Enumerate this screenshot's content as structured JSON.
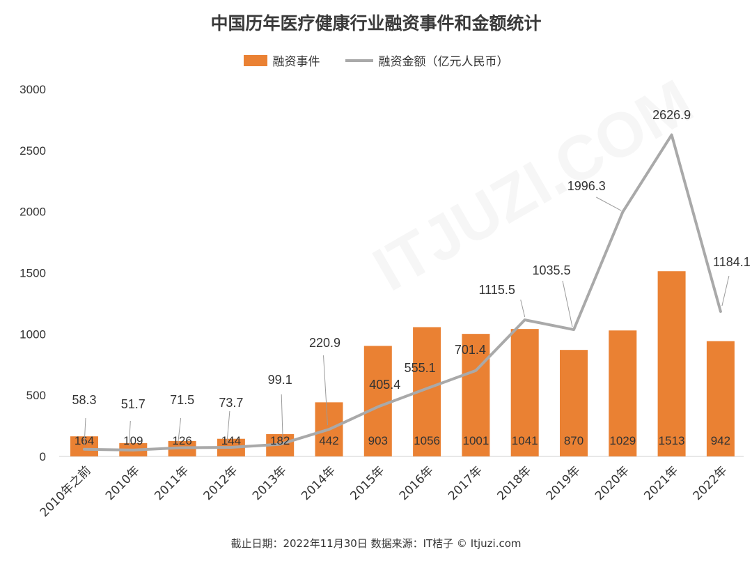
{
  "colors": {
    "bar": "#ea8133",
    "line": "#a9a9a9",
    "label": "#333333",
    "leader": "#9a9a9a"
  },
  "legend": {
    "bar": "融资事件",
    "line": "融资金额（亿元人民币）"
  },
  "source": "截止日期：2022年11月30日   数据来源：IT桔子 © Itjuzi.com",
  "chart_data": {
    "type": "bar+line",
    "title": "中国历年医疗健康行业融资事件和金额统计",
    "categories": [
      "2010年之前",
      "2010年",
      "2011年",
      "2012年",
      "2013年",
      "2014年",
      "2015年",
      "2016年",
      "2017年",
      "2018年",
      "2019年",
      "2020年",
      "2021年",
      "2022年"
    ],
    "series": [
      {
        "name": "融资事件",
        "type": "bar",
        "values": [
          164,
          109,
          126,
          144,
          182,
          442,
          903,
          1056,
          1001,
          1041,
          870,
          1029,
          1513,
          942
        ]
      },
      {
        "name": "融资金额（亿元人民币）",
        "type": "line",
        "values": [
          58.3,
          51.7,
          71.5,
          73.7,
          99.1,
          220.9,
          405.4,
          555.1,
          701.4,
          1115.5,
          1035.5,
          1996.3,
          2626.9,
          1184.1
        ]
      }
    ],
    "y_ticks": [
      0,
      500,
      1000,
      1500,
      2000,
      2500,
      3000
    ],
    "ylim": [
      0,
      3000
    ],
    "grid": false,
    "legend_position": "top"
  }
}
